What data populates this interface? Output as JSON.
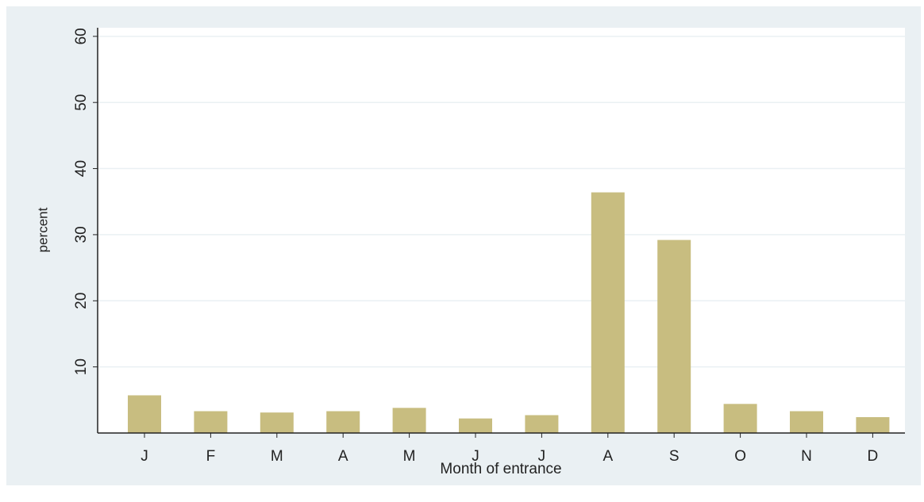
{
  "chart_data": {
    "type": "bar",
    "categories": [
      "J",
      "F",
      "M",
      "A",
      "M",
      "J",
      "J",
      "A",
      "S",
      "O",
      "N",
      "D"
    ],
    "values": [
      5.7,
      3.3,
      3.1,
      3.3,
      3.8,
      2.2,
      2.7,
      36.4,
      29.2,
      4.4,
      3.3,
      2.4
    ],
    "color": "#c8bd80",
    "x_label": "Month of entrance",
    "y_label": "percent",
    "ylim": [
      0,
      61.3
    ],
    "yticks": [
      10,
      20,
      30,
      40,
      50,
      60
    ],
    "grid": true
  }
}
